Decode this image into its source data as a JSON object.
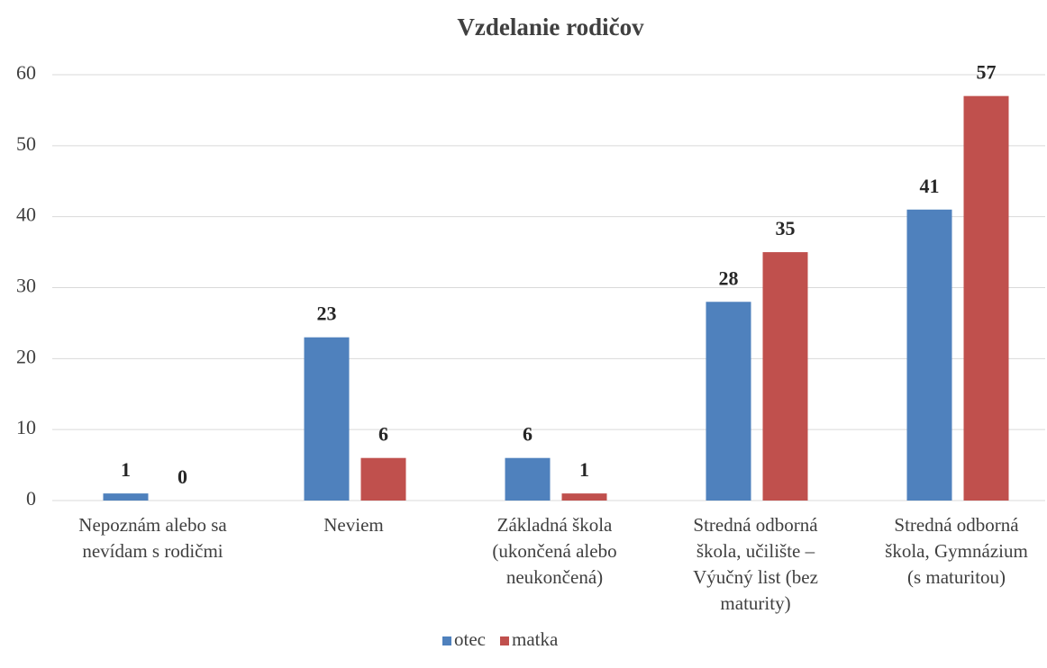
{
  "chart_data": {
    "type": "bar",
    "title": "Vzdelanie rodičov",
    "categories": [
      "Nepoznám alebo sa\nnevídam s rodičmi",
      "Neviem",
      "Základná škola\n(ukončená alebo\nneukončená)",
      "Stredná odborná\nškola, učilište –\nVýučný list (bez\nmaturity)",
      "Stredná odborná\nškola, Gymnázium\n(s maturitou)"
    ],
    "series": [
      {
        "name": "otec",
        "color": "#4f81bd",
        "values": [
          1,
          23,
          6,
          28,
          41
        ]
      },
      {
        "name": "matka",
        "color": "#c0504d",
        "values": [
          0,
          6,
          1,
          35,
          57
        ]
      }
    ],
    "ylim": [
      0,
      60
    ],
    "yticks": [
      0,
      10,
      20,
      30,
      40,
      50,
      60
    ],
    "grid": true,
    "legend": "bottom"
  }
}
